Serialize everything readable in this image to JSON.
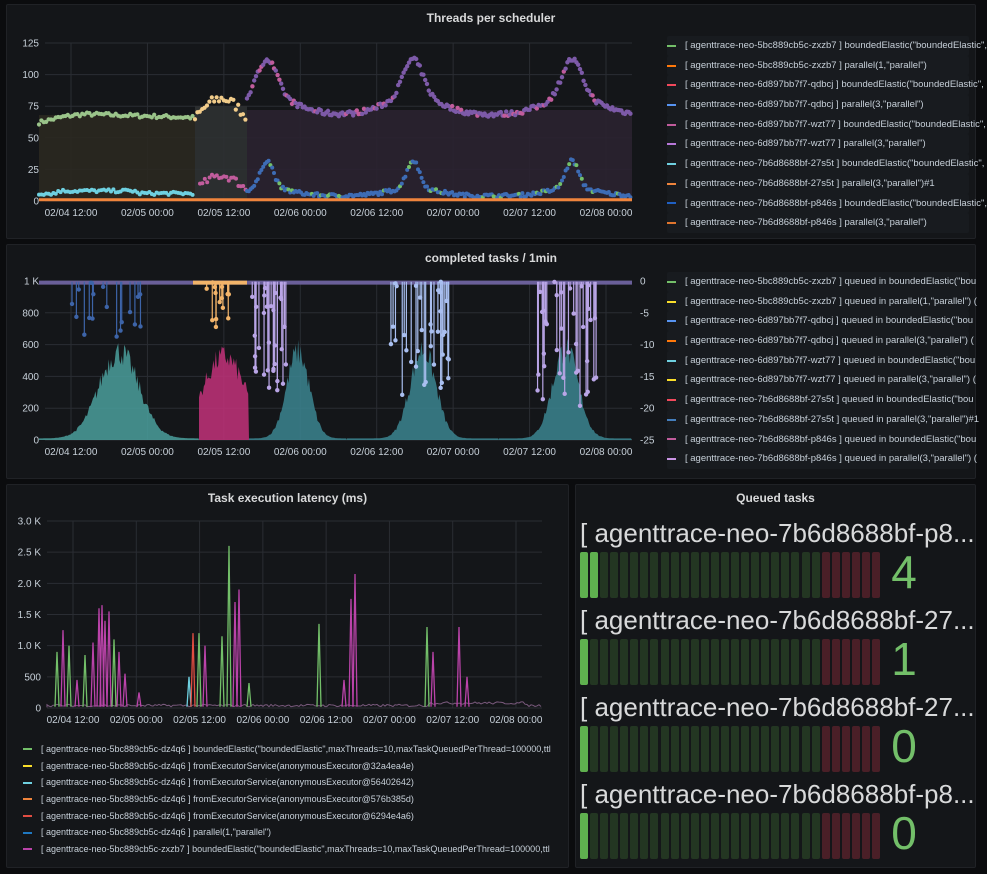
{
  "colors": {
    "green": "#73bf69",
    "orange": "#ff780a",
    "red": "#f2495c",
    "blue": "#5794f2",
    "purple": "#b877d9",
    "cyan": "#6ed0e0",
    "yellow": "#fade2a",
    "mauve": "#c15c9c",
    "darkblue": "#1f60c4",
    "teal": "#447ebc",
    "lavender": "#ca95e5",
    "light": "#8ab8ff"
  },
  "panels": {
    "threads": {
      "title": "Threads per scheduler",
      "y_ticks": [
        "125",
        "100",
        "75",
        "50",
        "25",
        "0"
      ],
      "x_ticks": [
        "02/04 12:00",
        "02/05 00:00",
        "02/05 12:00",
        "02/06 00:00",
        "02/06 12:00",
        "02/07 00:00",
        "02/07 12:00",
        "02/08 00:00"
      ],
      "legend": [
        {
          "label": "[ agenttrace-neo-5bc889cb5c-zxzb7 ] boundedElastic(\"boundedElastic\",",
          "color": "#73bf69"
        },
        {
          "label": "[ agenttrace-neo-5bc889cb5c-zxzb7 ] parallel(1,\"parallel\")",
          "color": "#ff780a"
        },
        {
          "label": "[ agenttrace-neo-6d897bb7f7-qdbcj ] boundedElastic(\"boundedElastic\",",
          "color": "#f2495c"
        },
        {
          "label": "[ agenttrace-neo-6d897bb7f7-qdbcj ] parallel(3,\"parallel\")",
          "color": "#5794f2"
        },
        {
          "label": "[ agenttrace-neo-6d897bb7f7-wzt77 ] boundedElastic(\"boundedElastic\",",
          "color": "#c15c9c"
        },
        {
          "label": "[ agenttrace-neo-6d897bb7f7-wzt77 ] parallel(3,\"parallel\")",
          "color": "#b877d9"
        },
        {
          "label": "[ agenttrace-neo-7b6d8688bf-27s5t ] boundedElastic(\"boundedElastic\",",
          "color": "#6ed0e0"
        },
        {
          "label": "[ agenttrace-neo-7b6d8688bf-27s5t ] parallel(3,\"parallel\")#1",
          "color": "#ef843c"
        },
        {
          "label": "[ agenttrace-neo-7b6d8688bf-p846s ] boundedElastic(\"boundedElastic\",",
          "color": "#1f60c4"
        },
        {
          "label": "[ agenttrace-neo-7b6d8688bf-p846s ] parallel(3,\"parallel\")",
          "color": "#e0752d"
        }
      ]
    },
    "completed": {
      "title": "completed tasks / 1min",
      "y_ticks": [
        "1 K",
        "800",
        "600",
        "400",
        "200",
        "0"
      ],
      "y2_ticks": [
        "0",
        "-5",
        "-10",
        "-15",
        "-20",
        "-25"
      ],
      "x_ticks": [
        "02/04 12:00",
        "02/05 00:00",
        "02/05 12:00",
        "02/06 00:00",
        "02/06 12:00",
        "02/07 00:00",
        "02/07 12:00",
        "02/08 00:00"
      ],
      "legend": [
        {
          "label": "[ agenttrace-neo-5bc889cb5c-zxzb7 ] queued in boundedElastic(\"bou",
          "color": "#73bf69"
        },
        {
          "label": "[ agenttrace-neo-5bc889cb5c-zxzb7 ] queued in parallel(1,\"parallel\") (",
          "color": "#fade2a"
        },
        {
          "label": "[ agenttrace-neo-6d897bb7f7-qdbcj ] queued in boundedElastic(\"bou",
          "color": "#5794f2"
        },
        {
          "label": "[ agenttrace-neo-6d897bb7f7-qdbcj ] queued in parallel(3,\"parallel\") (",
          "color": "#ff780a"
        },
        {
          "label": "[ agenttrace-neo-6d897bb7f7-wzt77 ] queued in boundedElastic(\"bou",
          "color": "#6ed0e0"
        },
        {
          "label": "[ agenttrace-neo-6d897bb7f7-wzt77 ] queued in parallel(3,\"parallel\") (",
          "color": "#fade2a"
        },
        {
          "label": "[ agenttrace-neo-7b6d8688bf-27s5t ] queued in boundedElastic(\"bou",
          "color": "#f2495c"
        },
        {
          "label": "[ agenttrace-neo-7b6d8688bf-27s5t ] queued in parallel(3,\"parallel\")#1",
          "color": "#447ebc"
        },
        {
          "label": "[ agenttrace-neo-7b6d8688bf-p846s ] queued in boundedElastic(\"bou",
          "color": "#c15c9c"
        },
        {
          "label": "[ agenttrace-neo-7b6d8688bf-p846s ] queued in parallel(3,\"parallel\") (",
          "color": "#ca95e5"
        }
      ]
    },
    "latency": {
      "title": "Task execution latency (ms)",
      "y_ticks": [
        "3.0 K",
        "2.5 K",
        "2.0 K",
        "1.5 K",
        "1.0 K",
        "500",
        "0"
      ],
      "x_ticks": [
        "02/04 12:00",
        "02/05 00:00",
        "02/05 12:00",
        "02/06 00:00",
        "02/06 12:00",
        "02/07 00:00",
        "02/07 12:00",
        "02/08 00:00"
      ],
      "legend": [
        {
          "label": "[ agenttrace-neo-5bc889cb5c-dz4q6 ] boundedElastic(\"boundedElastic\",maxThreads=10,maxTaskQueuedPerThread=100000,ttl",
          "color": "#73bf69"
        },
        {
          "label": "[ agenttrace-neo-5bc889cb5c-dz4q6 ] fromExecutorService(anonymousExecutor@32a4ea4e)",
          "color": "#fade2a"
        },
        {
          "label": "[ agenttrace-neo-5bc889cb5c-dz4q6 ] fromExecutorService(anonymousExecutor@56402642)",
          "color": "#6ed0e0"
        },
        {
          "label": "[ agenttrace-neo-5bc889cb5c-dz4q6 ] fromExecutorService(anonymousExecutor@576b385d)",
          "color": "#ef843c"
        },
        {
          "label": "[ agenttrace-neo-5bc889cb5c-dz4q6 ] fromExecutorService(anonymousExecutor@6294e4a6)",
          "color": "#e24d42"
        },
        {
          "label": "[ agenttrace-neo-5bc889cb5c-dz4q6 ] parallel(1,\"parallel\")",
          "color": "#1f78c1"
        },
        {
          "label": "[ agenttrace-neo-5bc889cb5c-zxzb7 ] boundedElastic(\"boundedElastic\",maxThreads=10,maxTaskQueuedPerThread=100000,ttl",
          "color": "#ba43a9"
        }
      ]
    },
    "queued": {
      "title": "Queued tasks",
      "items": [
        {
          "name": "[ agenttrace-neo-7b6d8688bf-p8...",
          "value": "4",
          "level": 2
        },
        {
          "name": "[ agenttrace-neo-7b6d8688bf-27...",
          "value": "1",
          "level": 1
        },
        {
          "name": "[ agenttrace-neo-7b6d8688bf-27...",
          "value": "0",
          "level": 0.5
        },
        {
          "name": "[ agenttrace-neo-7b6d8688bf-p8...",
          "value": "0",
          "level": 0.5
        }
      ]
    }
  }
}
